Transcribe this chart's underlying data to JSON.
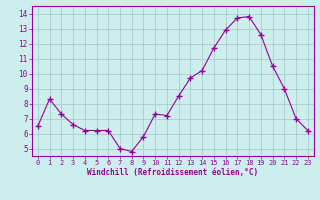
{
  "x": [
    0,
    1,
    2,
    3,
    4,
    5,
    6,
    7,
    8,
    9,
    10,
    11,
    12,
    13,
    14,
    15,
    16,
    17,
    18,
    19,
    20,
    21,
    22,
    23
  ],
  "y": [
    6.5,
    8.3,
    7.3,
    6.6,
    6.2,
    6.2,
    6.2,
    5.0,
    4.8,
    5.8,
    7.3,
    7.2,
    8.5,
    9.7,
    10.2,
    11.7,
    12.9,
    13.7,
    13.8,
    12.6,
    10.5,
    9.0,
    7.0,
    6.2
  ],
  "line_color": "#990099",
  "marker": "+",
  "marker_size": 4,
  "bg_color": "#cceeed",
  "grid_color": "#aacccc",
  "xlabel": "Windchill (Refroidissement éolien,°C)",
  "xlabel_color": "#990099",
  "tick_color": "#990099",
  "ylim": [
    4.5,
    14.5
  ],
  "yticks": [
    5,
    6,
    7,
    8,
    9,
    10,
    11,
    12,
    13,
    14
  ],
  "xticks": [
    0,
    1,
    2,
    3,
    4,
    5,
    6,
    7,
    8,
    9,
    10,
    11,
    12,
    13,
    14,
    15,
    16,
    17,
    18,
    19,
    20,
    21,
    22,
    23
  ],
  "border_color": "#990099",
  "title": ""
}
